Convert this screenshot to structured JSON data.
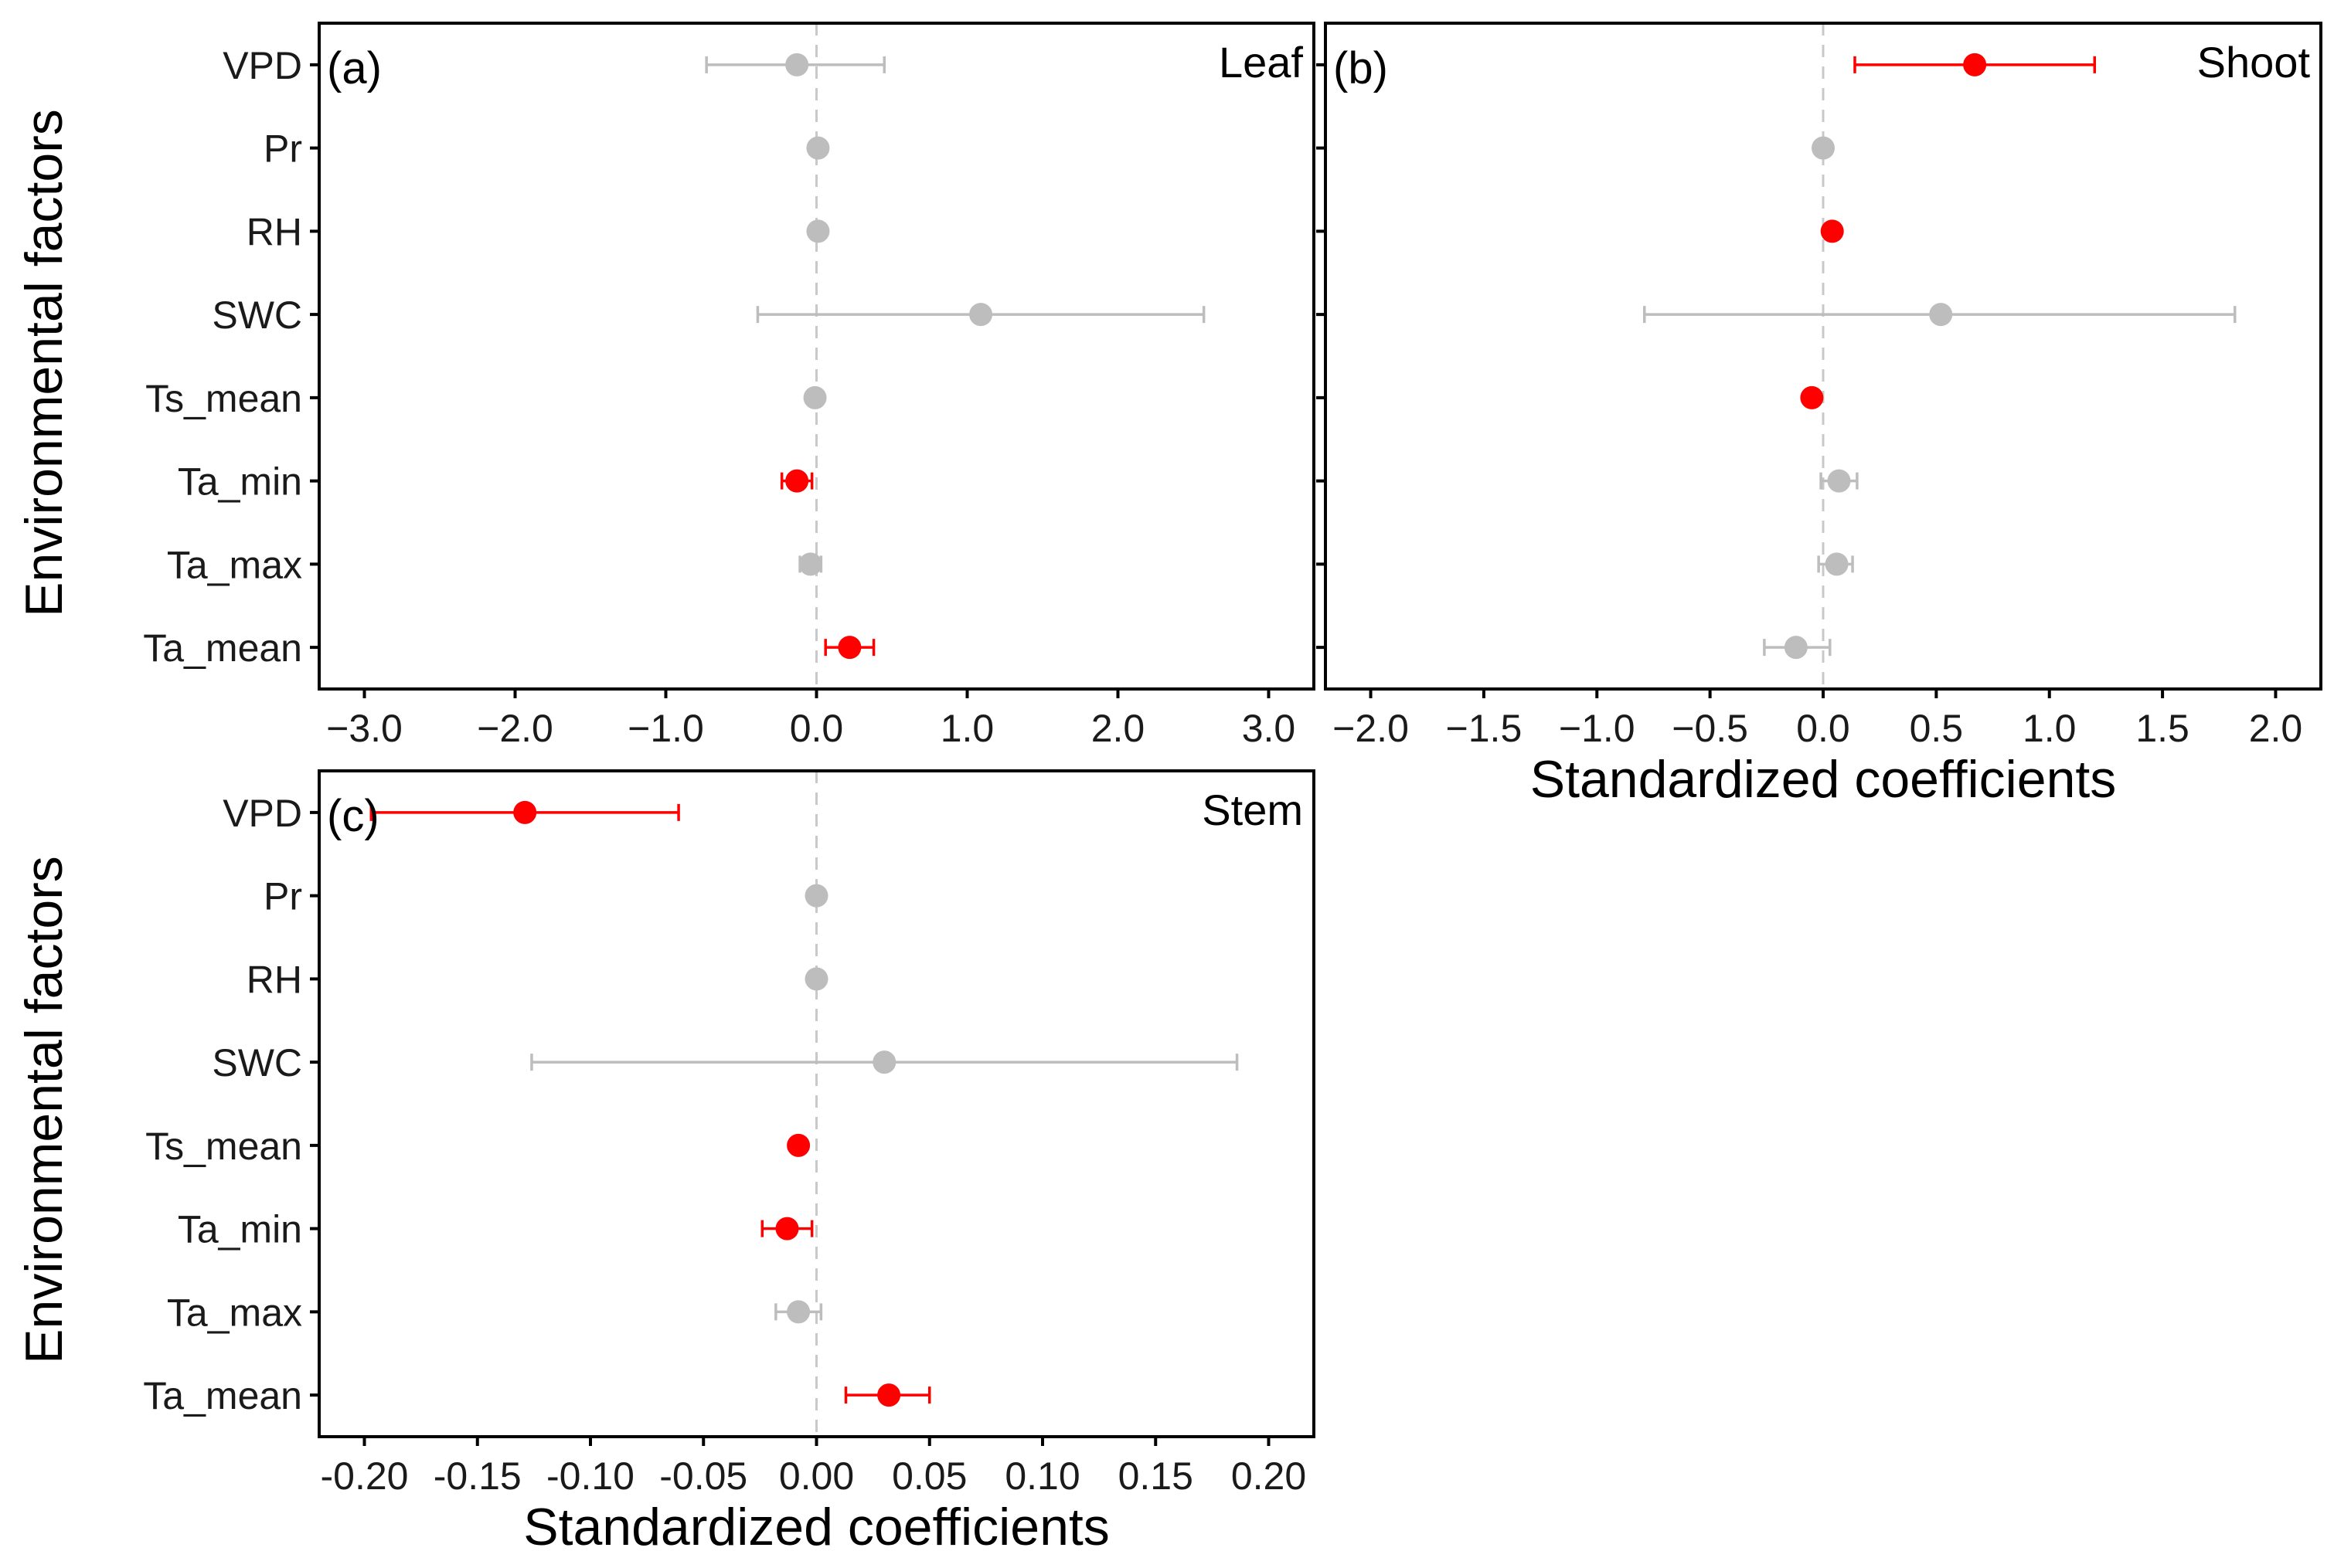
{
  "colors": {
    "significant": "#ff0000",
    "nonsignificant": "#bdbdbd",
    "zero_line": "#c8c8c8",
    "frame": "#000000"
  },
  "figure": {
    "y_axis_title": "Environmental factors",
    "x_axis_title": "Standardized coefficients"
  },
  "chart_data": [
    {
      "type": "scatter",
      "panel_label": "(a)",
      "title": "Leaf",
      "xlabel": "",
      "ylabel": "Environmental factors",
      "xlim": [
        -3.3,
        3.3
      ],
      "x_ticks": [
        -3,
        -2,
        -1,
        0,
        1,
        2,
        3
      ],
      "x_tick_labels": [
        "−3.0",
        "−2.0",
        "−1.0",
        "0.0",
        "1.0",
        "2.0",
        "3.0"
      ],
      "categories": [
        "VPD",
        "Pr",
        "RH",
        "SWC",
        "Ts_mean",
        "Ta_min",
        "Ta_max",
        "Ta_mean"
      ],
      "points": [
        {
          "factor": "VPD",
          "estimate": -0.13,
          "lower": -0.73,
          "upper": 0.45,
          "significant": false
        },
        {
          "factor": "Pr",
          "estimate": 0.01,
          "lower": 0.01,
          "upper": 0.01,
          "significant": false
        },
        {
          "factor": "RH",
          "estimate": 0.01,
          "lower": 0.01,
          "upper": 0.01,
          "significant": false
        },
        {
          "factor": "SWC",
          "estimate": 1.09,
          "lower": -0.39,
          "upper": 2.57,
          "significant": false
        },
        {
          "factor": "Ts_mean",
          "estimate": -0.01,
          "lower": -0.01,
          "upper": -0.01,
          "significant": false
        },
        {
          "factor": "Ta_min",
          "estimate": -0.13,
          "lower": -0.23,
          "upper": -0.03,
          "significant": true
        },
        {
          "factor": "Ta_max",
          "estimate": -0.04,
          "lower": -0.11,
          "upper": 0.03,
          "significant": false
        },
        {
          "factor": "Ta_mean",
          "estimate": 0.22,
          "lower": 0.06,
          "upper": 0.38,
          "significant": true
        }
      ]
    },
    {
      "type": "scatter",
      "panel_label": "(b)",
      "title": "Shoot",
      "xlabel": "Standardized coefficients",
      "ylabel": "",
      "xlim": [
        -2.2,
        2.2
      ],
      "x_ticks": [
        -2,
        -1.5,
        -1,
        -0.5,
        0,
        0.5,
        1,
        1.5,
        2
      ],
      "x_tick_labels": [
        "−2.0",
        "−1.5",
        "−1.0",
        "−0.5",
        "0.0",
        "0.5",
        "1.0",
        "1.5",
        "2.0"
      ],
      "categories": [
        "VPD",
        "Pr",
        "RH",
        "SWC",
        "Ts_mean",
        "Ta_min",
        "Ta_max",
        "Ta_mean"
      ],
      "points": [
        {
          "factor": "VPD",
          "estimate": 0.67,
          "lower": 0.14,
          "upper": 1.2,
          "significant": true
        },
        {
          "factor": "Pr",
          "estimate": 0.0,
          "lower": 0.0,
          "upper": 0.0,
          "significant": false
        },
        {
          "factor": "RH",
          "estimate": 0.04,
          "lower": 0.04,
          "upper": 0.04,
          "significant": true
        },
        {
          "factor": "SWC",
          "estimate": 0.52,
          "lower": -0.79,
          "upper": 1.82,
          "significant": false
        },
        {
          "factor": "Ts_mean",
          "estimate": -0.05,
          "lower": -0.05,
          "upper": -0.05,
          "significant": true
        },
        {
          "factor": "Ta_min",
          "estimate": 0.07,
          "lower": -0.01,
          "upper": 0.15,
          "significant": false
        },
        {
          "factor": "Ta_max",
          "estimate": 0.06,
          "lower": -0.02,
          "upper": 0.13,
          "significant": false
        },
        {
          "factor": "Ta_mean",
          "estimate": -0.12,
          "lower": -0.26,
          "upper": 0.03,
          "significant": false
        }
      ]
    },
    {
      "type": "scatter",
      "panel_label": "(c)",
      "title": "Stem",
      "xlabel": "Standardized coefficients",
      "ylabel": "Environmental factors",
      "xlim": [
        -0.22,
        0.22
      ],
      "x_ticks": [
        -0.2,
        -0.15,
        -0.1,
        -0.05,
        0,
        0.05,
        0.1,
        0.15,
        0.2
      ],
      "x_tick_labels": [
        "-0.20",
        "-0.15",
        "-0.10",
        "-0.05",
        "0.00",
        "0.05",
        "0.10",
        "0.15",
        "0.20"
      ],
      "categories": [
        "VPD",
        "Pr",
        "RH",
        "SWC",
        "Ts_mean",
        "Ta_min",
        "Ta_max",
        "Ta_mean"
      ],
      "points": [
        {
          "factor": "VPD",
          "estimate": -0.129,
          "lower": -0.197,
          "upper": -0.061,
          "significant": true
        },
        {
          "factor": "Pr",
          "estimate": 0.0,
          "lower": 0.0,
          "upper": 0.0,
          "significant": false
        },
        {
          "factor": "RH",
          "estimate": 0.0,
          "lower": 0.0,
          "upper": 0.0,
          "significant": false
        },
        {
          "factor": "SWC",
          "estimate": 0.03,
          "lower": -0.126,
          "upper": 0.186,
          "significant": false
        },
        {
          "factor": "Ts_mean",
          "estimate": -0.008,
          "lower": -0.008,
          "upper": -0.008,
          "significant": true
        },
        {
          "factor": "Ta_min",
          "estimate": -0.013,
          "lower": -0.024,
          "upper": -0.002,
          "significant": true
        },
        {
          "factor": "Ta_max",
          "estimate": -0.008,
          "lower": -0.018,
          "upper": 0.002,
          "significant": false
        },
        {
          "factor": "Ta_mean",
          "estimate": 0.032,
          "lower": 0.013,
          "upper": 0.05,
          "significant": true
        }
      ]
    }
  ]
}
